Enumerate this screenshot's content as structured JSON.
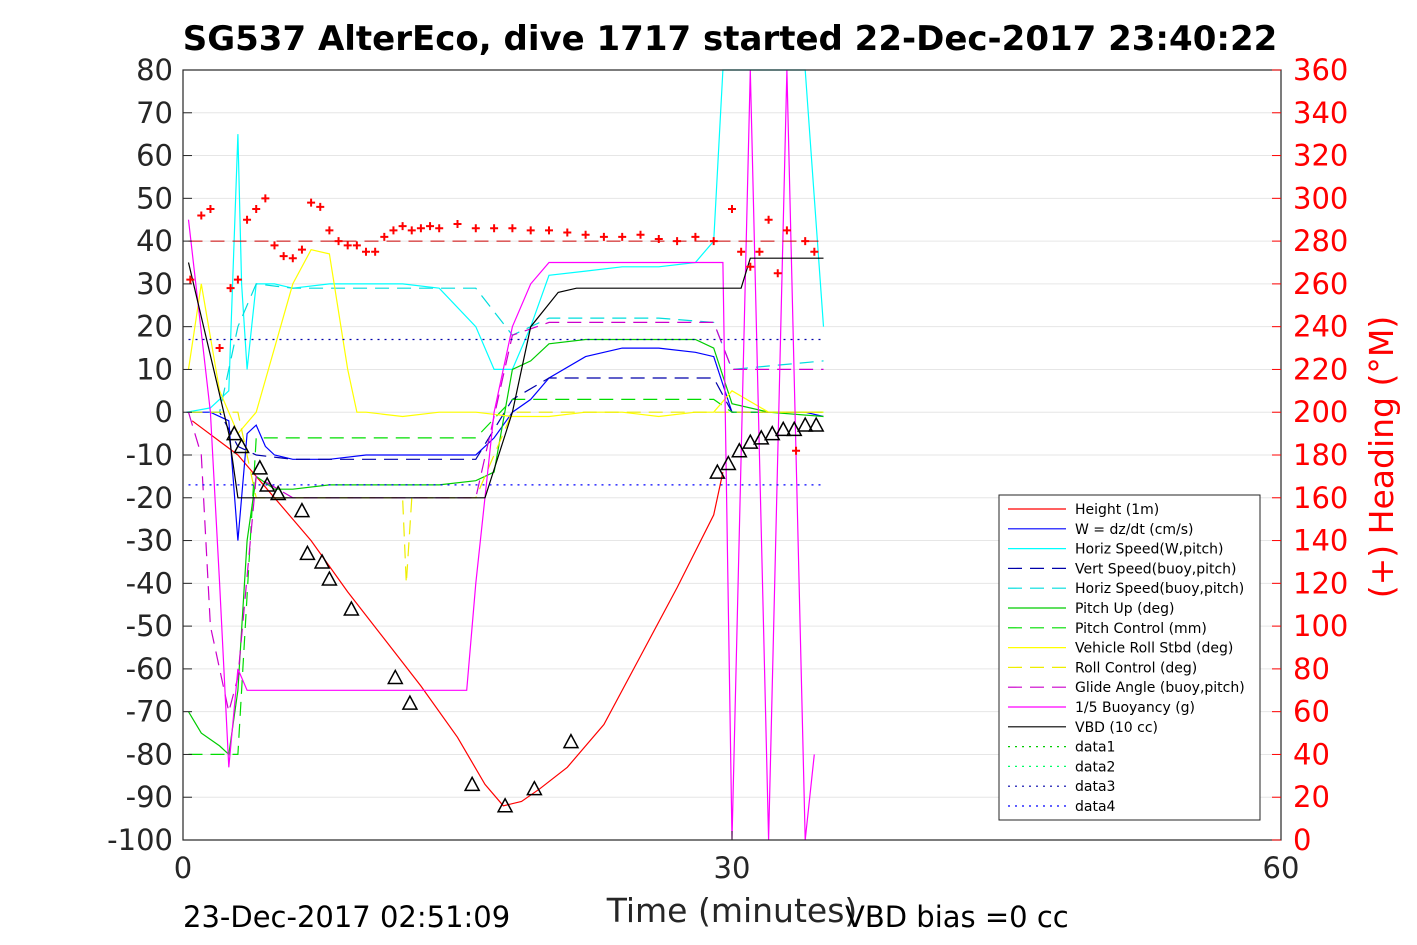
{
  "chart_data": {
    "type": "line",
    "title": "SG537 AlterEco, dive 1717 started 22-Dec-2017 23:40:22",
    "xlabel": "Time (minutes)",
    "ylabel": "",
    "y2label": "(+) Heading (°M)",
    "xlim": [
      0,
      60
    ],
    "ylim": [
      -100,
      80
    ],
    "y2lim": [
      0,
      360
    ],
    "x_ticks": [
      "0",
      "30",
      "60"
    ],
    "y_ticks": [
      "80",
      "70",
      "60",
      "50",
      "40",
      "30",
      "20",
      "10",
      "0",
      "-10",
      "-20",
      "-30",
      "-40",
      "-50",
      "-60",
      "-70",
      "-80",
      "-90",
      "-100"
    ],
    "y2_ticks": [
      "360",
      "340",
      "320",
      "300",
      "280",
      "260",
      "240",
      "220",
      "200",
      "180",
      "160",
      "140",
      "120",
      "100",
      "80",
      "60",
      "40",
      "20",
      "0"
    ],
    "grid": true,
    "legend_position": "right",
    "footer_left": "23-Dec-2017 02:51:09",
    "footer_right": "VBD bias =0 cc",
    "series": [
      {
        "name": "Height (1m)",
        "color": "#ff0000",
        "style": "solid",
        "x": [
          0.5,
          3.0,
          5.0,
          7.0,
          9.0,
          11.0,
          13.0,
          15.0,
          16.5,
          17.5,
          18.5,
          19.5,
          21.0,
          23.0,
          25.0,
          27.0,
          29.0,
          29.5
        ],
        "y": [
          -2,
          -10,
          -20,
          -30,
          -42,
          -53,
          -64,
          -76,
          -87,
          -92,
          -91,
          -88,
          -83,
          -73,
          -57,
          -41,
          -24,
          -14
        ]
      },
      {
        "name": "W = dz/dt (cm/s)",
        "color": "#0000ff",
        "style": "solid",
        "x": [
          0.2,
          1.5,
          2.5,
          3.0,
          3.5,
          4.0,
          4.5,
          5.0,
          6.0,
          8.0,
          10.0,
          12.0,
          14.0,
          16.0,
          17.0,
          18.0,
          19.0,
          20.0,
          22.0,
          24.0,
          26.0,
          28.0,
          29.0,
          30.0,
          32.0,
          34.0,
          35.0
        ],
        "y": [
          0,
          0,
          -2,
          -30,
          -5,
          -3,
          -8,
          -10,
          -11,
          -11,
          -10,
          -10,
          -10,
          -10,
          -6,
          0,
          3,
          8,
          13,
          15,
          15,
          14,
          13,
          0,
          0,
          0,
          -1
        ]
      },
      {
        "name": "Horiz Speed(W,pitch)",
        "color": "#00ffff",
        "style": "solid",
        "x": [
          0.2,
          1.5,
          2.5,
          3.0,
          3.2,
          3.5,
          4.0,
          5.0,
          6.0,
          8.0,
          10.0,
          12.0,
          14.0,
          16.0,
          17.0,
          18.0,
          19.0,
          20.0,
          22.0,
          24.0,
          26.0,
          28.0,
          29.0,
          29.5,
          30.0,
          31.0,
          32.0,
          33.0,
          34.0,
          35.0
        ],
        "y": [
          0,
          1,
          5,
          65,
          30,
          10,
          30,
          30,
          29,
          30,
          30,
          30,
          29,
          20,
          10,
          10,
          20,
          32,
          33,
          34,
          34,
          35,
          40,
          80,
          80,
          80,
          80,
          80,
          80,
          20
        ]
      },
      {
        "name": "Vert Speed(buoy,pitch)",
        "color": "#0000aa",
        "style": "dashed",
        "x": [
          0.2,
          2.0,
          3.0,
          4.0,
          6.0,
          10.0,
          14.0,
          16.0,
          18.0,
          20.0,
          26.0,
          29.0,
          30.0,
          35.0
        ],
        "y": [
          0,
          0,
          -8,
          -10,
          -11,
          -11,
          -11,
          -11,
          3,
          8,
          8,
          8,
          0,
          0
        ]
      },
      {
        "name": "Horiz Speed(buoy,pitch)",
        "color": "#00dddd",
        "style": "dashed",
        "x": [
          0.2,
          2.0,
          3.0,
          4.0,
          6.0,
          10.0,
          14.0,
          16.0,
          18.0,
          20.0,
          26.0,
          29.0,
          30.0,
          35.0
        ],
        "y": [
          0,
          0,
          20,
          30,
          29,
          29,
          29,
          29,
          18,
          22,
          22,
          21,
          10,
          12
        ]
      },
      {
        "name": "Pitch Up (deg)",
        "color": "#00cc00",
        "style": "solid",
        "x": [
          0.3,
          1.0,
          2.0,
          2.5,
          3.0,
          3.5,
          4.0,
          5.0,
          6.0,
          8.0,
          10.0,
          12.0,
          14.0,
          16.0,
          17.0,
          18.0,
          19.0,
          20.0,
          22.0,
          24.0,
          26.0,
          28.0,
          29.0,
          30.0,
          32.0,
          35.0
        ],
        "y": [
          -70,
          -75,
          -78,
          -80,
          -65,
          -30,
          -15,
          -18,
          -18,
          -17,
          -17,
          -17,
          -17,
          -16,
          -14,
          10,
          12,
          16,
          17,
          17,
          17,
          17,
          15,
          2,
          0,
          -1
        ]
      },
      {
        "name": "Pitch Control (mm)",
        "color": "#00dd00",
        "style": "dashed",
        "x": [
          0.3,
          3.0,
          4.0,
          8.0,
          16.0,
          18.0,
          20.0,
          29.0,
          30.0,
          35.0
        ],
        "y": [
          -80,
          -80,
          -6,
          -6,
          -6,
          3,
          3,
          3,
          0,
          0
        ]
      },
      {
        "name": "Vehicle Roll Stbd (deg)",
        "color": "#ffff00",
        "style": "solid",
        "x": [
          0.3,
          1.0,
          2.0,
          3.0,
          4.0,
          5.0,
          6.0,
          7.0,
          8.0,
          9.0,
          9.5,
          10.0,
          12.0,
          14.0,
          16.0,
          18.0,
          20.0,
          22.0,
          24.0,
          26.0,
          28.0,
          29.0,
          30.0,
          32.0,
          35.0
        ],
        "y": [
          10,
          30,
          5,
          -5,
          0,
          15,
          30,
          38,
          37,
          10,
          0,
          0,
          -1,
          0,
          0,
          -1,
          -1,
          0,
          0,
          -1,
          0,
          0,
          5,
          0,
          0
        ]
      },
      {
        "name": "Roll Control (deg)",
        "color": "#eeee00",
        "style": "dashed",
        "x": [
          0.3,
          3.0,
          4.0,
          8.0,
          10.0,
          12.0,
          12.2,
          12.5,
          14.0,
          16.0,
          18.0,
          29.0,
          30.0,
          35.0
        ],
        "y": [
          0,
          0,
          -20,
          -20,
          -20,
          -20,
          -40,
          -20,
          -20,
          -20,
          0,
          0,
          0,
          0
        ]
      },
      {
        "name": "Glide Angle (buoy,pitch)",
        "color": "#cc00cc",
        "style": "dashed",
        "x": [
          0.3,
          1.0,
          1.5,
          2.0,
          2.5,
          3.0,
          4.0,
          6.0,
          10.0,
          14.0,
          16.0,
          18.0,
          20.0,
          29.0,
          30.0,
          35.0
        ],
        "y": [
          0,
          -10,
          -50,
          -60,
          -70,
          -62,
          -15,
          -20,
          -20,
          -20,
          -20,
          18,
          21,
          21,
          10,
          10
        ]
      },
      {
        "name": "1/5 Buoyancy (g)",
        "color": "#ff00ff",
        "style": "solid",
        "x": [
          0.3,
          1.5,
          2.0,
          2.5,
          3.0,
          3.5,
          4.0,
          8.0,
          12.0,
          15.5,
          16.0,
          17.0,
          18.0,
          19.0,
          20.0,
          21.0,
          29.0,
          29.5,
          30.0,
          31.0,
          32.0,
          33.0,
          34.0,
          34.5
        ],
        "y": [
          45,
          0,
          -40,
          -83,
          -60,
          -65,
          -65,
          -65,
          -65,
          -65,
          -40,
          0,
          20,
          30,
          35,
          35,
          35,
          35,
          -100,
          80,
          -100,
          80,
          -100,
          -80
        ]
      },
      {
        "name": "VBD (10 cc)",
        "color": "#000000",
        "style": "solid",
        "x": [
          0.3,
          2.5,
          3.0,
          8.0,
          12.0,
          16.0,
          16.5,
          18.0,
          19.0,
          20.5,
          21.5,
          29.0,
          30.5,
          31.0,
          35.0
        ],
        "y": [
          35,
          -5,
          -20,
          -20,
          -20,
          -20,
          -20,
          0,
          20,
          28,
          29,
          29,
          29,
          36,
          36
        ]
      },
      {
        "name": "data1",
        "color": "#00cc00",
        "style": "dotted",
        "x": [],
        "y": []
      },
      {
        "name": "data2",
        "color": "#00ff66",
        "style": "dotted",
        "x": [],
        "y": []
      },
      {
        "name": "data3",
        "color": "#0000aa",
        "style": "dotted",
        "x": [
          0.3,
          35.0
        ],
        "y": [
          17,
          17
        ]
      },
      {
        "name": "data4",
        "color": "#0000ff",
        "style": "dotted",
        "x": [
          0.3,
          35.0
        ],
        "y": [
          -17,
          -17
        ]
      }
    ],
    "heading_points": {
      "color": "#ff0000",
      "target_heading": 280,
      "x": [
        0.4,
        1.0,
        1.5,
        2.0,
        2.6,
        3.0,
        3.5,
        4.0,
        4.5,
        5.0,
        5.5,
        6.0,
        6.5,
        7.0,
        7.5,
        8.0,
        8.5,
        9.0,
        9.5,
        10.0,
        10.5,
        11.0,
        11.5,
        12.0,
        12.5,
        13.0,
        13.5,
        14.0,
        15.0,
        16.0,
        17.0,
        18.0,
        19.0,
        20.0,
        21.0,
        22.0,
        23.0,
        24.0,
        25.0,
        26.0,
        27.0,
        28.0,
        29.0,
        30.0,
        30.5,
        31.0,
        31.5,
        32.0,
        32.5,
        33.0,
        33.5,
        34.0,
        34.5
      ],
      "y": [
        262,
        292,
        295,
        230,
        258,
        262,
        290,
        295,
        300,
        278,
        273,
        272,
        276,
        298,
        296,
        285,
        280,
        278,
        278,
        275,
        275,
        282,
        285,
        287,
        285,
        286,
        287,
        286,
        288,
        286,
        286,
        286,
        285,
        285,
        284,
        283,
        282,
        282,
        283,
        281,
        280,
        282,
        280,
        295,
        275,
        268,
        275,
        290,
        265,
        285,
        182,
        280,
        275
      ]
    },
    "profile_markers": {
      "color": "#000000",
      "x": [
        2.8,
        3.2,
        4.2,
        4.6,
        5.2,
        6.5,
        6.8,
        7.6,
        8.0,
        9.2,
        11.6,
        12.4,
        15.8,
        17.6,
        19.2,
        21.2,
        29.2,
        29.8,
        30.4,
        31.0,
        31.6,
        32.2,
        32.8,
        33.4,
        34.0,
        34.6
      ],
      "y": [
        -5,
        -8,
        -13,
        -17,
        -19,
        -23,
        -33,
        -35,
        -39,
        -46,
        -62,
        -68,
        -87,
        -92,
        -88,
        -77,
        -14,
        -12,
        -9,
        -7,
        -6,
        -5,
        -4,
        -4,
        -3,
        -3
      ]
    }
  }
}
